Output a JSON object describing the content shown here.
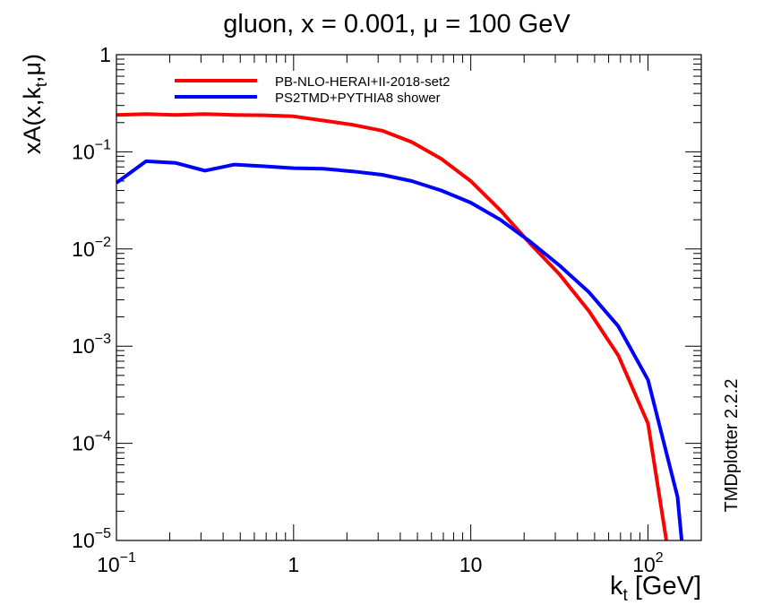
{
  "chart_data": {
    "type": "line",
    "title": "gluon, x = 0.001, μ = 100 GeV",
    "xlabel": {
      "main": "k",
      "sub": "t",
      "rest": " [GeV]"
    },
    "ylabel": {
      "main": "xA(x,k",
      "sub": "t",
      "rest": ",μ)"
    },
    "xscale": "log",
    "yscale": "log",
    "xlim": [
      0.1,
      200
    ],
    "ylim": [
      1e-05,
      1
    ],
    "xticks": [
      {
        "base": "10",
        "exp": "−1"
      },
      {
        "base": "1",
        "exp": ""
      },
      {
        "base": "10",
        "exp": ""
      },
      {
        "base": "10",
        "exp": "2"
      }
    ],
    "yticks": [
      {
        "base": "10",
        "exp": "−5"
      },
      {
        "base": "10",
        "exp": "−4"
      },
      {
        "base": "10",
        "exp": "−3"
      },
      {
        "base": "10",
        "exp": "−2"
      },
      {
        "base": "10",
        "exp": "−1"
      },
      {
        "base": "1",
        "exp": ""
      }
    ],
    "legend_position": "top-left",
    "side_label": "TMDplotter 2.2.2",
    "series": [
      {
        "name": "PB-NLO-HERAI+II-2018-set2",
        "color": "#ff0000",
        "x": [
          0.1,
          0.147,
          0.215,
          0.316,
          0.464,
          0.681,
          1.0,
          1.47,
          2.15,
          3.16,
          4.64,
          6.81,
          10.0,
          14.7,
          21.5,
          31.6,
          46.4,
          68.1,
          100,
          127
        ],
        "y": [
          0.24,
          0.245,
          0.24,
          0.245,
          0.24,
          0.238,
          0.232,
          0.21,
          0.19,
          0.165,
          0.126,
          0.085,
          0.05,
          0.025,
          0.0115,
          0.0055,
          0.0023,
          0.0008,
          0.00016,
          1e-05
        ]
      },
      {
        "name": "PS2TMD+PYTHIA8 shower",
        "color": "#0000ff",
        "x": [
          0.1,
          0.147,
          0.215,
          0.316,
          0.464,
          0.681,
          1.0,
          1.47,
          2.15,
          3.16,
          4.64,
          6.81,
          10.0,
          14.7,
          21.5,
          31.6,
          46.4,
          68.1,
          100,
          147,
          155
        ],
        "y": [
          0.048,
          0.08,
          0.077,
          0.064,
          0.074,
          0.071,
          0.068,
          0.067,
          0.063,
          0.058,
          0.05,
          0.04,
          0.03,
          0.02,
          0.012,
          0.0068,
          0.0036,
          0.0016,
          0.00045,
          2.8e-05,
          1e-05
        ]
      }
    ]
  }
}
